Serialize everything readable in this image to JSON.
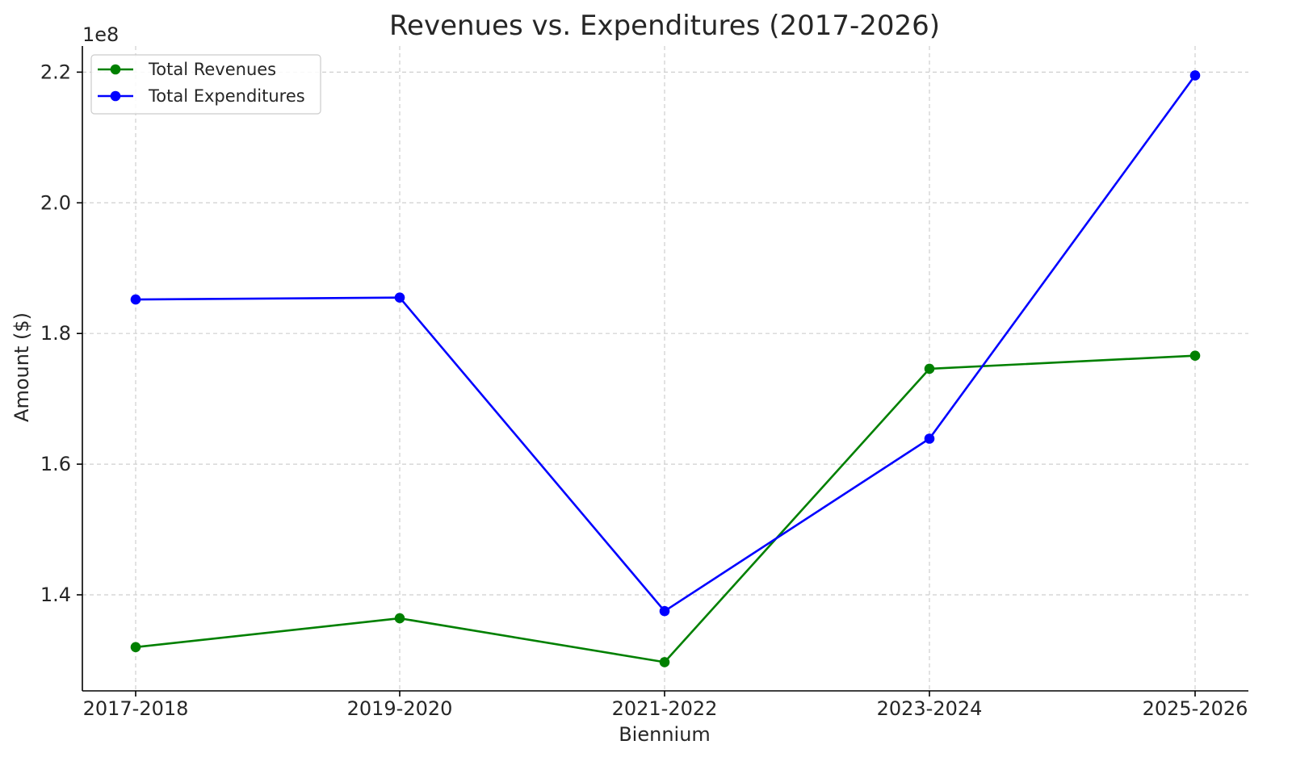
{
  "chart_data": {
    "type": "line",
    "title": "Revenues vs. Expenditures (2017-2026)",
    "xlabel": "Biennium",
    "ylabel": "Amount ($)",
    "y_offset_label": "1e8",
    "categories": [
      "2017-2018",
      "2019-2020",
      "2021-2022",
      "2023-2024",
      "2025-2026"
    ],
    "series": [
      {
        "name": "Total Revenues",
        "color": "#008000",
        "values": [
          132000000,
          136400000,
          129700000,
          174600000,
          176600000
        ]
      },
      {
        "name": "Total Expenditures",
        "color": "#0000ff",
        "values": [
          185200000,
          185500000,
          137500000,
          163900000,
          219500000
        ]
      }
    ],
    "ylim": [
      125300000,
      224000000
    ],
    "yticks": [
      140000000,
      160000000,
      180000000,
      200000000,
      220000000
    ],
    "ytick_labels": [
      "1.4",
      "1.6",
      "1.8",
      "2.0",
      "2.2"
    ],
    "grid": true,
    "legend_position": "top-left"
  }
}
